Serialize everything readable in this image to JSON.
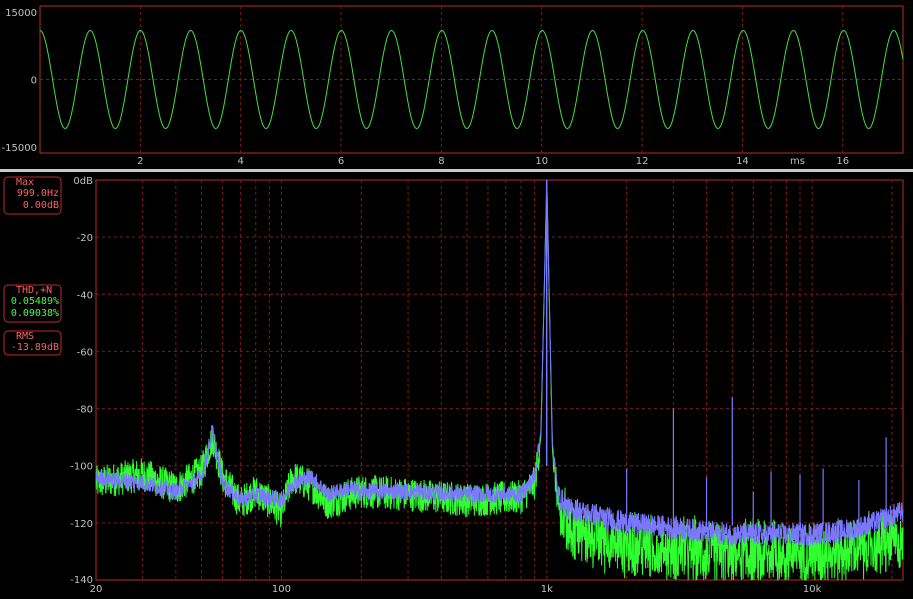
{
  "colors": {
    "background": "#000000",
    "frame": "#c02828",
    "grid": "#7a1e1e",
    "tick_text": "#c0c0c0",
    "divider": "#c8c8c8",
    "waveform": "#40e040",
    "ch1": "#30ff30",
    "ch2": "#7a78ff",
    "readout_label": "#ff6060",
    "readout_green": "#40ff40"
  },
  "readouts": {
    "max": {
      "title": "Max",
      "freq": "999.0Hz",
      "level": "0.00dB"
    },
    "thd": {
      "title": "THD,+N",
      "value1": "0.05489%",
      "value2": "0.09038%"
    },
    "rms": {
      "title": "RMS",
      "value": "-13.89dB"
    }
  },
  "chart_data": [
    {
      "type": "line",
      "name": "waveform",
      "x_unit_label": "ms",
      "xlim": [
        0,
        17.2
      ],
      "ylim": [
        -15000,
        15000
      ],
      "y_ticks": [
        "15000",
        "0",
        "-15000"
      ],
      "x_ticks": [
        "2",
        "4",
        "6",
        "8",
        "10",
        "12",
        "14",
        "16"
      ],
      "signal": {
        "frequency_hz": 999,
        "amplitude": 10000
      },
      "grid": true
    },
    {
      "type": "line",
      "name": "spectrum",
      "x_scale": "log",
      "xlim": [
        20,
        22000
      ],
      "ylim": [
        -140,
        0
      ],
      "x_ticks": [
        "20",
        "100",
        "1k",
        "10k"
      ],
      "y_ticks": [
        "0dB",
        "-20",
        "-40",
        "-60",
        "-80",
        "-100",
        "-120",
        "-140"
      ],
      "grid": true,
      "peak": {
        "freq": 999,
        "level": 0
      },
      "harmonics": [
        {
          "freq": 2000,
          "level": -101
        },
        {
          "freq": 3000,
          "level": -80
        },
        {
          "freq": 4000,
          "level": -104
        },
        {
          "freq": 5000,
          "level": -76
        },
        {
          "freq": 6000,
          "level": -109
        },
        {
          "freq": 7000,
          "level": -102
        },
        {
          "freq": 9000,
          "level": -103
        },
        {
          "freq": 11000,
          "level": -101
        },
        {
          "freq": 15000,
          "level": -105
        },
        {
          "freq": 19000,
          "level": -90
        }
      ],
      "series": [
        {
          "color": "#30ff30",
          "x": [
            20,
            30,
            40,
            50,
            55,
            60,
            70,
            80,
            100,
            110,
            130,
            150,
            180,
            200,
            300,
            500,
            800,
            900,
            950,
            1000,
            1050,
            1100,
            1200,
            2000,
            5000,
            10000,
            15000,
            22000
          ],
          "y": [
            -106,
            -103,
            -108,
            -102,
            -90,
            -104,
            -113,
            -109,
            -116,
            -104,
            -107,
            -113,
            -110,
            -109,
            -110,
            -112,
            -111,
            -106,
            -90,
            0,
            -95,
            -112,
            -118,
            -124,
            -127,
            -127,
            -125,
            -122
          ]
        },
        {
          "color": "#7a78ff",
          "x": [
            20,
            30,
            40,
            50,
            55,
            60,
            70,
            80,
            100,
            110,
            130,
            150,
            180,
            200,
            300,
            500,
            800,
            900,
            950,
            1000,
            1050,
            1100,
            1200,
            2000,
            5000,
            10000,
            15000,
            22000
          ],
          "y": [
            -104,
            -106,
            -109,
            -104,
            -88,
            -106,
            -112,
            -110,
            -112,
            -106,
            -104,
            -110,
            -108,
            -109,
            -109,
            -110,
            -110,
            -104,
            -88,
            0,
            -92,
            -110,
            -115,
            -120,
            -124,
            -124,
            -122,
            -116
          ]
        }
      ]
    }
  ]
}
